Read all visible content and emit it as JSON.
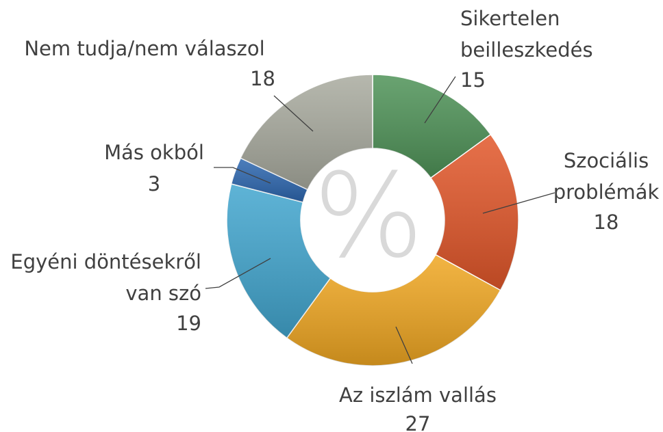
{
  "chart_data": {
    "type": "donut",
    "center_label": "%",
    "categories": [
      "Sikertelen beilleszkedés",
      "Szociális problémák",
      "Az iszlám vallás",
      "Egyéni döntésekről van szó",
      "Más okból",
      "Nem tudja/nem válaszol"
    ],
    "values": [
      15,
      18,
      27,
      19,
      3,
      18
    ],
    "colors": [
      "#4f9358",
      "#e2572a",
      "#f0a722",
      "#42a6cf",
      "#2d67b0",
      "#a9ab9f"
    ]
  }
}
